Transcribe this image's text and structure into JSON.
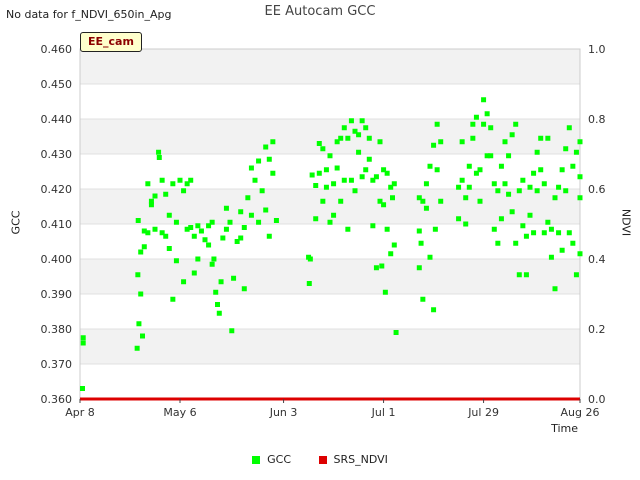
{
  "header": {
    "no_data_note": "No data for f_NDVI_650in_Apg",
    "badge": "EE_cam"
  },
  "legend": {
    "items": [
      {
        "label": "GCC",
        "color": "#00ff00"
      },
      {
        "label": "SRS_NDVI",
        "color": "#dd0000"
      }
    ]
  },
  "chart_data": {
    "type": "scatter",
    "title": "EE Autocam GCC",
    "xlabel": "Time",
    "ylabel": "GCC",
    "y2label": "NDVI",
    "x_unit": "days since Apr 8",
    "xlim": [
      0,
      140
    ],
    "ylim": [
      0.36,
      0.46
    ],
    "y2lim": [
      0.0,
      1.0
    ],
    "x_ticks": [
      {
        "value": 0,
        "label": "Apr 8"
      },
      {
        "value": 28,
        "label": "May 6"
      },
      {
        "value": 57,
        "label": "Jun 3"
      },
      {
        "value": 85,
        "label": "Jul 1"
      },
      {
        "value": 113,
        "label": "Jul 29"
      },
      {
        "value": 140,
        "label": "Aug 26"
      }
    ],
    "y_ticks": [
      {
        "value": 0.36,
        "label": "0.360"
      },
      {
        "value": 0.37,
        "label": "0.370"
      },
      {
        "value": 0.38,
        "label": "0.380"
      },
      {
        "value": 0.39,
        "label": "0.390"
      },
      {
        "value": 0.4,
        "label": "0.400"
      },
      {
        "value": 0.41,
        "label": "0.410"
      },
      {
        "value": 0.42,
        "label": "0.420"
      },
      {
        "value": 0.43,
        "label": "0.430"
      },
      {
        "value": 0.44,
        "label": "0.440"
      },
      {
        "value": 0.45,
        "label": "0.450"
      },
      {
        "value": 0.46,
        "label": "0.460"
      }
    ],
    "y2_ticks": [
      {
        "value": 0.0,
        "label": "0.0"
      },
      {
        "value": 0.2,
        "label": "0.2"
      },
      {
        "value": 0.4,
        "label": "0.4"
      },
      {
        "value": 0.6,
        "label": "0.6"
      },
      {
        "value": 0.8,
        "label": "0.8"
      },
      {
        "value": 1.0,
        "label": "1.0"
      }
    ],
    "series": [
      {
        "name": "GCC",
        "color": "#00ff00",
        "axis": "left",
        "points": [
          [
            0.7,
            0.363
          ],
          [
            0.9,
            0.376
          ],
          [
            0.9,
            0.3775
          ],
          [
            16,
            0.3745
          ],
          [
            16.5,
            0.3815
          ],
          [
            17.5,
            0.378
          ],
          [
            16.2,
            0.3955
          ],
          [
            17,
            0.39
          ],
          [
            18,
            0.4035
          ],
          [
            16.3,
            0.411
          ],
          [
            17,
            0.402
          ],
          [
            18,
            0.408
          ],
          [
            19,
            0.4215
          ],
          [
            20,
            0.4155
          ],
          [
            21,
            0.418
          ],
          [
            22,
            0.4305
          ],
          [
            22.2,
            0.429
          ],
          [
            19,
            0.4075
          ],
          [
            20,
            0.4165
          ],
          [
            21,
            0.4085
          ],
          [
            23,
            0.4225
          ],
          [
            24,
            0.4185
          ],
          [
            25,
            0.4125
          ],
          [
            26,
            0.4215
          ],
          [
            23,
            0.4075
          ],
          [
            24,
            0.4065
          ],
          [
            25,
            0.403
          ],
          [
            26,
            0.3885
          ],
          [
            27,
            0.4105
          ],
          [
            28,
            0.4225
          ],
          [
            29,
            0.4195
          ],
          [
            30,
            0.4215
          ],
          [
            31,
            0.4225
          ],
          [
            27,
            0.3995
          ],
          [
            29,
            0.3935
          ],
          [
            30,
            0.4085
          ],
          [
            31,
            0.409
          ],
          [
            32,
            0.4065
          ],
          [
            32,
            0.396
          ],
          [
            33,
            0.4
          ],
          [
            34,
            0.408
          ],
          [
            35,
            0.4055
          ],
          [
            36,
            0.4095
          ],
          [
            37,
            0.4105
          ],
          [
            33,
            0.4095
          ],
          [
            36,
            0.404
          ],
          [
            37,
            0.3985
          ],
          [
            37.5,
            0.4
          ],
          [
            38,
            0.3905
          ],
          [
            38.5,
            0.387
          ],
          [
            39,
            0.3845
          ],
          [
            39.5,
            0.3935
          ],
          [
            40,
            0.406
          ],
          [
            41,
            0.4145
          ],
          [
            41,
            0.4085
          ],
          [
            42,
            0.4105
          ],
          [
            42.5,
            0.3795
          ],
          [
            43,
            0.3945
          ],
          [
            44,
            0.405
          ],
          [
            45,
            0.4135
          ],
          [
            45,
            0.406
          ],
          [
            46,
            0.409
          ],
          [
            46,
            0.3915
          ],
          [
            47,
            0.4175
          ],
          [
            48,
            0.426
          ],
          [
            48,
            0.4125
          ],
          [
            49,
            0.4225
          ],
          [
            50,
            0.428
          ],
          [
            50,
            0.4105
          ],
          [
            51,
            0.4195
          ],
          [
            52,
            0.432
          ],
          [
            52,
            0.414
          ],
          [
            53,
            0.4285
          ],
          [
            53,
            0.4065
          ],
          [
            54,
            0.4245
          ],
          [
            54,
            0.4335
          ],
          [
            55,
            0.411
          ],
          [
            64,
            0.4005
          ],
          [
            64.2,
            0.393
          ],
          [
            64.5,
            0.4
          ],
          [
            65,
            0.424
          ],
          [
            66,
            0.421
          ],
          [
            66,
            0.4115
          ],
          [
            67,
            0.433
          ],
          [
            67,
            0.4245
          ],
          [
            68,
            0.4315
          ],
          [
            68,
            0.4165
          ],
          [
            69,
            0.4255
          ],
          [
            69,
            0.4205
          ],
          [
            70,
            0.4295
          ],
          [
            70,
            0.4105
          ],
          [
            71,
            0.4215
          ],
          [
            71,
            0.4125
          ],
          [
            72,
            0.4335
          ],
          [
            72,
            0.426
          ],
          [
            73,
            0.4345
          ],
          [
            73,
            0.4165
          ],
          [
            74,
            0.4375
          ],
          [
            74,
            0.4225
          ],
          [
            75,
            0.4085
          ],
          [
            75,
            0.4345
          ],
          [
            76,
            0.4395
          ],
          [
            76,
            0.4225
          ],
          [
            77,
            0.4365
          ],
          [
            77,
            0.4195
          ],
          [
            78,
            0.4355
          ],
          [
            78,
            0.4305
          ],
          [
            79,
            0.4395
          ],
          [
            79,
            0.4235
          ],
          [
            80,
            0.4375
          ],
          [
            80,
            0.4255
          ],
          [
            81,
            0.4345
          ],
          [
            81,
            0.4285
          ],
          [
            82,
            0.4225
          ],
          [
            82,
            0.4095
          ],
          [
            83,
            0.4235
          ],
          [
            83,
            0.3975
          ],
          [
            84,
            0.4335
          ],
          [
            84,
            0.4165
          ],
          [
            85,
            0.4155
          ],
          [
            85,
            0.4255
          ],
          [
            86,
            0.4085
          ],
          [
            86,
            0.4245
          ],
          [
            87,
            0.4205
          ],
          [
            87,
            0.4015
          ],
          [
            88,
            0.4215
          ],
          [
            88,
            0.404
          ],
          [
            88.5,
            0.379
          ],
          [
            85.5,
            0.3905
          ],
          [
            84.5,
            0.398
          ],
          [
            87.5,
            0.4175
          ],
          [
            95,
            0.4175
          ],
          [
            95,
            0.408
          ],
          [
            96,
            0.4165
          ],
          [
            96,
            0.3885
          ],
          [
            97,
            0.4215
          ],
          [
            97,
            0.4145
          ],
          [
            98,
            0.4265
          ],
          [
            98,
            0.4005
          ],
          [
            99,
            0.3855
          ],
          [
            99,
            0.4325
          ],
          [
            100,
            0.4255
          ],
          [
            100,
            0.4385
          ],
          [
            101,
            0.4335
          ],
          [
            101,
            0.4165
          ],
          [
            95.5,
            0.4045
          ],
          [
            95,
            0.3975
          ],
          [
            99.5,
            0.4085
          ],
          [
            106,
            0.4205
          ],
          [
            106,
            0.4115
          ],
          [
            107,
            0.4225
          ],
          [
            107,
            0.4335
          ],
          [
            108,
            0.4175
          ],
          [
            108,
            0.41
          ],
          [
            109,
            0.4265
          ],
          [
            109,
            0.4205
          ],
          [
            110,
            0.4345
          ],
          [
            110,
            0.4385
          ],
          [
            111,
            0.4405
          ],
          [
            111,
            0.4245
          ],
          [
            112,
            0.4255
          ],
          [
            112,
            0.4165
          ],
          [
            113,
            0.4385
          ],
          [
            113,
            0.4455
          ],
          [
            114,
            0.4295
          ],
          [
            114,
            0.4415
          ],
          [
            115,
            0.4295
          ],
          [
            115,
            0.4375
          ],
          [
            116,
            0.4215
          ],
          [
            116,
            0.4085
          ],
          [
            117,
            0.4195
          ],
          [
            117,
            0.4045
          ],
          [
            118,
            0.4265
          ],
          [
            118,
            0.4115
          ],
          [
            119,
            0.4335
          ],
          [
            119,
            0.4215
          ],
          [
            120,
            0.4295
          ],
          [
            120,
            0.4185
          ],
          [
            121,
            0.4355
          ],
          [
            121,
            0.4135
          ],
          [
            122,
            0.4385
          ],
          [
            122,
            0.4045
          ],
          [
            123,
            0.4195
          ],
          [
            123,
            0.3955
          ],
          [
            124,
            0.4095
          ],
          [
            124,
            0.4225
          ],
          [
            125,
            0.4065
          ],
          [
            125,
            0.3955
          ],
          [
            126,
            0.4205
          ],
          [
            126,
            0.4125
          ],
          [
            127,
            0.4245
          ],
          [
            127,
            0.4075
          ],
          [
            128,
            0.4195
          ],
          [
            128,
            0.4305
          ],
          [
            129,
            0.4255
          ],
          [
            129,
            0.4345
          ],
          [
            130,
            0.4215
          ],
          [
            130,
            0.4075
          ],
          [
            131,
            0.4345
          ],
          [
            131,
            0.4105
          ],
          [
            132,
            0.4085
          ],
          [
            132,
            0.4005
          ],
          [
            133,
            0.4175
          ],
          [
            133,
            0.3915
          ],
          [
            134,
            0.4205
          ],
          [
            134,
            0.4075
          ],
          [
            135,
            0.4255
          ],
          [
            135,
            0.4025
          ],
          [
            136,
            0.4315
          ],
          [
            136,
            0.4195
          ],
          [
            137,
            0.4375
          ],
          [
            137,
            0.4075
          ],
          [
            138,
            0.4265
          ],
          [
            138,
            0.4045
          ],
          [
            139,
            0.4305
          ],
          [
            139,
            0.3955
          ],
          [
            140,
            0.4235
          ],
          [
            140,
            0.4335
          ],
          [
            140,
            0.4175
          ],
          [
            140,
            0.4015
          ]
        ]
      },
      {
        "name": "SRS_NDVI",
        "color": "#dd0000",
        "axis": "right",
        "points": [
          [
            0,
            0.0
          ],
          [
            35,
            0.0
          ],
          [
            70,
            0.0
          ],
          [
            105,
            0.0
          ],
          [
            140,
            0.0
          ]
        ]
      }
    ]
  }
}
